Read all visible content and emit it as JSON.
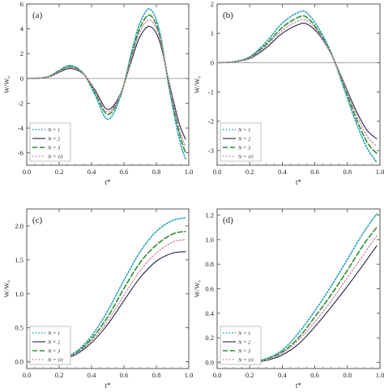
{
  "chart_data": [
    {
      "type": "line",
      "panel_label": "(a)",
      "xlabel": "t*",
      "ylabel": "W/W₀",
      "xlim": [
        0.0,
        1.0
      ],
      "ylim": [
        -7,
        6
      ],
      "x_ticks": [
        "0.0",
        "0.2",
        "0.4",
        "0.6",
        "0.8",
        "1.0"
      ],
      "y_ticks": [
        "-6",
        "-4",
        "-2",
        "0",
        "2",
        "4",
        "6"
      ],
      "y_tick_values": [
        -6,
        -4,
        -2,
        0,
        2,
        4,
        6
      ],
      "legend_position": "bottom-left",
      "x": [
        0.0,
        0.1,
        0.15,
        0.2,
        0.27,
        0.35,
        0.42,
        0.5,
        0.58,
        0.65,
        0.7,
        0.76,
        0.82,
        0.88,
        0.94,
        0.98
      ],
      "series": [
        {
          "name": "N = 1",
          "values": [
            0,
            0.05,
            0.25,
            0.65,
            1.05,
            0.4,
            -1.3,
            -3.3,
            -1.4,
            2.3,
            4.5,
            5.6,
            3.8,
            -0.9,
            -4.8,
            -6.5
          ]
        },
        {
          "name": "N = 2",
          "values": [
            0,
            0.04,
            0.18,
            0.5,
            0.8,
            0.35,
            -0.9,
            -2.5,
            -1.2,
            1.6,
            3.4,
            4.2,
            3.0,
            -0.4,
            -3.6,
            -4.9
          ]
        },
        {
          "name": "N = 3",
          "values": [
            0,
            0.05,
            0.22,
            0.6,
            0.95,
            0.38,
            -1.1,
            -2.9,
            -1.3,
            2.0,
            4.1,
            5.1,
            3.5,
            -0.7,
            -4.3,
            -6.0
          ]
        },
        {
          "name": "N = 10",
          "values": [
            0,
            0.045,
            0.2,
            0.55,
            0.88,
            0.36,
            -1.0,
            -2.7,
            -1.25,
            1.8,
            3.8,
            4.7,
            3.3,
            -0.55,
            -4.0,
            -5.5
          ]
        }
      ]
    },
    {
      "type": "line",
      "panel_label": "(b)",
      "xlabel": "t*",
      "ylabel": "W/W₀",
      "xlim": [
        0.0,
        1.0
      ],
      "ylim": [
        -3.5,
        2
      ],
      "x_ticks": [
        "0.0",
        "0.2",
        "0.4",
        "0.6",
        "0.8",
        "1.0"
      ],
      "y_ticks": [
        "-3",
        "-2",
        "-1",
        "0",
        "1",
        "2"
      ],
      "y_tick_values": [
        -3,
        -2,
        -1,
        0,
        1,
        2
      ],
      "legend_position": "bottom-left",
      "x": [
        0.0,
        0.1,
        0.2,
        0.3,
        0.4,
        0.5,
        0.55,
        0.62,
        0.7,
        0.78,
        0.85,
        0.92,
        0.98
      ],
      "series": [
        {
          "name": "N = 1",
          "values": [
            0,
            0.03,
            0.2,
            0.7,
            1.35,
            1.72,
            1.7,
            1.2,
            0.35,
            -0.9,
            -2.0,
            -2.9,
            -3.4
          ]
        },
        {
          "name": "N = 2",
          "values": [
            0,
            0.02,
            0.14,
            0.5,
            1.0,
            1.3,
            1.32,
            1.0,
            0.3,
            -0.7,
            -1.6,
            -2.3,
            -2.6
          ]
        },
        {
          "name": "N = 3",
          "values": [
            0,
            0.025,
            0.18,
            0.62,
            1.2,
            1.55,
            1.55,
            1.1,
            0.32,
            -0.8,
            -1.85,
            -2.7,
            -3.1
          ]
        },
        {
          "name": "N = 10",
          "values": [
            0,
            0.022,
            0.16,
            0.56,
            1.1,
            1.43,
            1.43,
            1.05,
            0.31,
            -0.75,
            -1.7,
            -2.5,
            -2.85
          ]
        }
      ]
    },
    {
      "type": "line",
      "panel_label": "(c)",
      "xlabel": "t*",
      "ylabel": "W/W₀",
      "xlim": [
        0.0,
        1.0
      ],
      "ylim": [
        -0.1,
        2.25
      ],
      "x_ticks": [
        "0.0",
        "0.2",
        "0.4",
        "0.6",
        "0.8",
        "1.0"
      ],
      "y_ticks": [
        "0.0",
        "0.5",
        "1.0",
        "1.5",
        "2.0"
      ],
      "y_tick_values": [
        0,
        0.5,
        1.0,
        1.5,
        2.0
      ],
      "legend_position": "bottom-left",
      "x": [
        0.0,
        0.1,
        0.2,
        0.3,
        0.4,
        0.5,
        0.6,
        0.7,
        0.8,
        0.9,
        0.98
      ],
      "series": [
        {
          "name": "N = 1",
          "values": [
            0,
            0.0,
            0.03,
            0.14,
            0.38,
            0.75,
            1.2,
            1.62,
            1.92,
            2.08,
            2.12
          ]
        },
        {
          "name": "N = 2",
          "values": [
            0,
            0.0,
            0.02,
            0.1,
            0.28,
            0.55,
            0.9,
            1.24,
            1.48,
            1.6,
            1.62
          ]
        },
        {
          "name": "N = 3",
          "values": [
            0,
            0.0,
            0.025,
            0.12,
            0.34,
            0.66,
            1.08,
            1.46,
            1.72,
            1.88,
            1.92
          ]
        },
        {
          "name": "N = 10",
          "values": [
            0,
            0.0,
            0.022,
            0.11,
            0.31,
            0.6,
            0.98,
            1.34,
            1.6,
            1.76,
            1.8
          ]
        }
      ]
    },
    {
      "type": "line",
      "panel_label": "(d)",
      "xlabel": "t*",
      "ylabel": "W/W₀",
      "xlim": [
        0.0,
        1.0
      ],
      "ylim": [
        -0.05,
        1.25
      ],
      "x_ticks": [
        "0.0",
        "0.2",
        "0.4",
        "0.6",
        "0.8",
        "1.0"
      ],
      "y_ticks": [
        "0.0",
        "0.2",
        "0.4",
        "0.6",
        "0.8",
        "1.0",
        "1.2"
      ],
      "y_tick_values": [
        0,
        0.2,
        0.4,
        0.6,
        0.8,
        1.0,
        1.2
      ],
      "legend_position": "bottom-left",
      "x": [
        0.0,
        0.1,
        0.2,
        0.3,
        0.4,
        0.5,
        0.6,
        0.7,
        0.8,
        0.9,
        0.98
      ],
      "series": [
        {
          "name": "N = 1",
          "values": [
            0,
            0.0,
            0.004,
            0.03,
            0.1,
            0.24,
            0.42,
            0.62,
            0.84,
            1.06,
            1.21
          ]
        },
        {
          "name": "N = 2",
          "values": [
            0,
            0.0,
            0.002,
            0.015,
            0.06,
            0.15,
            0.29,
            0.45,
            0.62,
            0.8,
            0.95
          ]
        },
        {
          "name": "N = 3",
          "values": [
            0,
            0.0,
            0.003,
            0.025,
            0.085,
            0.2,
            0.37,
            0.55,
            0.75,
            0.96,
            1.1
          ]
        },
        {
          "name": "N = 10",
          "values": [
            0,
            0.0,
            0.0025,
            0.02,
            0.075,
            0.18,
            0.33,
            0.5,
            0.69,
            0.88,
            1.03
          ]
        }
      ]
    }
  ],
  "series_styles": [
    {
      "color": "#1fa2b8",
      "dash": "1.5,2.2",
      "width": 1.6
    },
    {
      "color": "#23234f",
      "dash": "",
      "width": 1.1
    },
    {
      "color": "#2e8b2e",
      "dash": "6,3",
      "width": 1.6
    },
    {
      "color": "#d48aa6",
      "dash": "1.5,2.5",
      "width": 1.4
    }
  ]
}
